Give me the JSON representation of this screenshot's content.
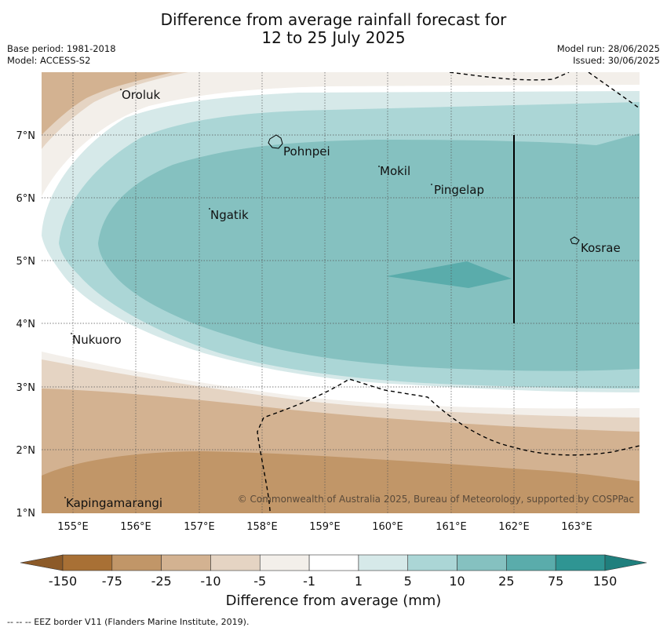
{
  "title_line1": "Difference from average rainfall forecast for",
  "title_line2": "12 to 25 July 2025",
  "meta_left": {
    "base_period": "Base period: 1981-2018",
    "model": "Model: ACCESS-S2"
  },
  "meta_right": {
    "model_run": "Model run: 28/06/2025",
    "issued": "Issued: 30/06/2025"
  },
  "map": {
    "lat_labels": [
      "7°N",
      "6°N",
      "5°N",
      "4°N",
      "3°N",
      "2°N",
      "1°N"
    ],
    "lon_labels": [
      "155°E",
      "156°E",
      "157°E",
      "158°E",
      "159°E",
      "160°E",
      "161°E",
      "162°E",
      "163°E"
    ],
    "places": {
      "oroluk": "Oroluk",
      "pohnpei": "Pohnpei",
      "mokil": "Mokil",
      "pingelap": "Pingelap",
      "ngatik": "Ngatik",
      "kosrae": "Kosrae",
      "nukuoro": "Nukuoro",
      "kapingamarangi": "Kapingamarangi"
    },
    "copyright": "© Commonwealth of Australia 2025, Bureau of Meteorology, supported by COSPPac"
  },
  "colorbar": {
    "ticks": [
      "-150",
      "-75",
      "-25",
      "-10",
      "-5",
      "-1",
      "1",
      "5",
      "10",
      "25",
      "75",
      "150"
    ],
    "colors": [
      "#a87035",
      "#c19668",
      "#d3b291",
      "#e5d4c3",
      "#f3efea",
      "#ffffff",
      "#d6e9e9",
      "#abd6d6",
      "#85c1c0",
      "#5aacab",
      "#2f9593"
    ],
    "under_color": "#8c5a28",
    "over_color": "#1f7f7d",
    "label": "Difference from average (mm)"
  },
  "footer": "--  --  -- EEZ border V11 (Flanders Marine Institute, 2019)."
}
